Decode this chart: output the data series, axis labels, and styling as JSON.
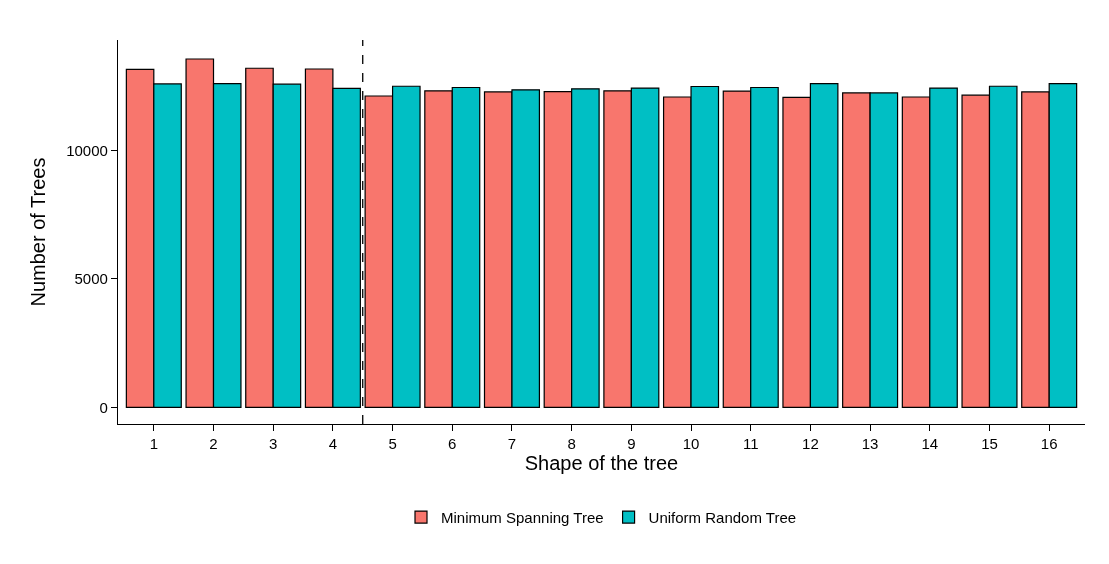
{
  "chart_data": {
    "type": "bar",
    "xlabel": "Shape of the tree",
    "ylabel": "Number of Trees",
    "x": [
      1,
      2,
      3,
      4,
      5,
      6,
      7,
      8,
      9,
      10,
      11,
      12,
      13,
      14,
      15,
      16
    ],
    "series": [
      {
        "name": "Minimum Spanning Tree",
        "color": "#f8766d",
        "values": [
          13160,
          13560,
          13200,
          13170,
          12120,
          12320,
          12280,
          12290,
          12320,
          12080,
          12310,
          12070,
          12240,
          12080,
          12150,
          12280
        ]
      },
      {
        "name": "Uniform Random Tree",
        "color": "#00bfc4",
        "values": [
          12590,
          12600,
          12580,
          12420,
          12500,
          12450,
          12360,
          12400,
          12430,
          12490,
          12450,
          12600,
          12240,
          12430,
          12500,
          12600
        ]
      }
    ],
    "xlim": [
      0.4,
      16.6
    ],
    "xticks": [
      1,
      2,
      3,
      4,
      5,
      6,
      7,
      8,
      9,
      10,
      11,
      12,
      13,
      14,
      15,
      16
    ],
    "ylim": [
      -650,
      14300
    ],
    "yticks": [
      0,
      5000,
      10000
    ],
    "ref_lines": [
      {
        "axis": "x",
        "value": 4.5,
        "line_style": "dashed",
        "color": "#000000"
      }
    ],
    "legend": "bottom"
  }
}
